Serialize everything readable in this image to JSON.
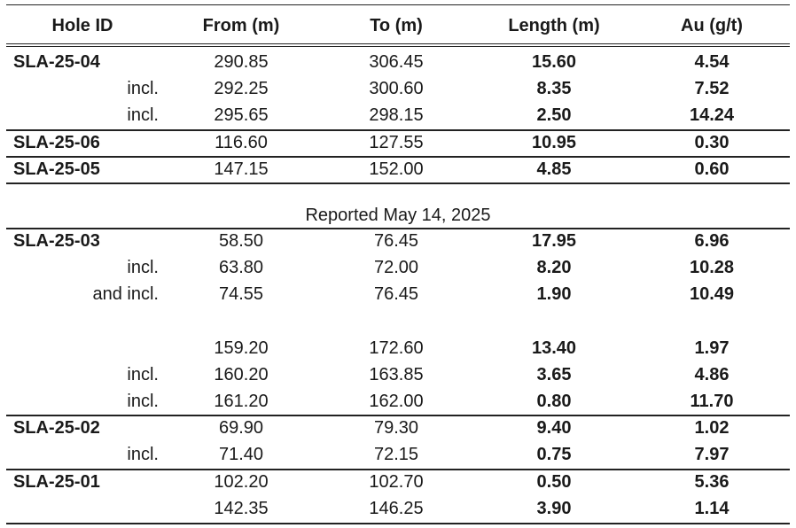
{
  "columns": [
    "Hole ID",
    "From (m)",
    "To (m)",
    "Length (m)",
    "Au (g/t)"
  ],
  "group1": [
    {
      "label": "SLA-25-04",
      "kind": "hole",
      "from": "290.85",
      "to": "306.45",
      "length": "15.60",
      "au": "4.54"
    },
    {
      "label": "incl.",
      "kind": "sub",
      "from": "292.25",
      "to": "300.60",
      "length": "8.35",
      "au": "7.52"
    },
    {
      "label": "incl.",
      "kind": "sub",
      "from": "295.65",
      "to": "298.15",
      "length": "2.50",
      "au": "14.24"
    },
    {
      "label": "SLA-25-06",
      "kind": "hole",
      "from": "116.60",
      "to": "127.55",
      "length": "10.95",
      "au": "0.30"
    },
    {
      "label": "SLA-25-05",
      "kind": "hole",
      "from": "147.15",
      "to": "152.00",
      "length": "4.85",
      "au": "0.60"
    }
  ],
  "section_label": "Reported May 14, 2025",
  "group2": [
    {
      "label": "SLA-25-03",
      "kind": "hole",
      "from": "58.50",
      "to": "76.45",
      "length": "17.95",
      "au": "6.96"
    },
    {
      "label": "incl.",
      "kind": "sub",
      "from": "63.80",
      "to": "72.00",
      "length": "8.20",
      "au": "10.28"
    },
    {
      "label": "and incl.",
      "kind": "sub",
      "from": "74.55",
      "to": "76.45",
      "length": "1.90",
      "au": "10.49"
    },
    {
      "label": "",
      "kind": "sub",
      "from": "159.20",
      "to": "172.60",
      "length": "13.40",
      "au": "1.97"
    },
    {
      "label": "incl.",
      "kind": "sub",
      "from": "160.20",
      "to": "163.85",
      "length": "3.65",
      "au": "4.86"
    },
    {
      "label": "incl.",
      "kind": "sub",
      "from": "161.20",
      "to": "162.00",
      "length": "0.80",
      "au": "11.70"
    },
    {
      "label": "SLA-25-02",
      "kind": "hole",
      "from": "69.90",
      "to": "79.30",
      "length": "9.40",
      "au": "1.02"
    },
    {
      "label": "incl.",
      "kind": "sub",
      "from": "71.40",
      "to": "72.15",
      "length": "0.75",
      "au": "7.97"
    },
    {
      "label": "SLA-25-01",
      "kind": "hole",
      "from": "102.20",
      "to": "102.70",
      "length": "0.50",
      "au": "5.36"
    },
    {
      "label": "",
      "kind": "sub",
      "from": "142.35",
      "to": "146.25",
      "length": "3.90",
      "au": "1.14"
    }
  ]
}
